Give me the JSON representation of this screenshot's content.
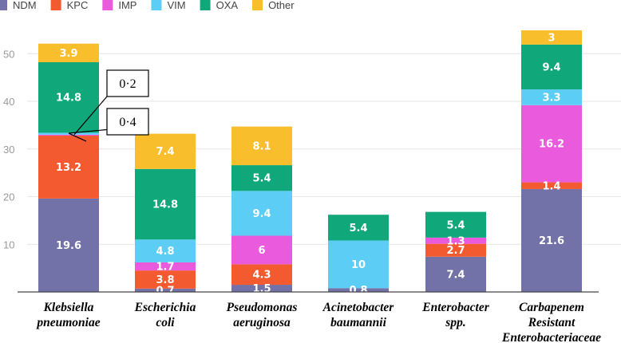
{
  "chart_data": {
    "type": "bar",
    "stacked": true,
    "title": "",
    "xlabel": "",
    "ylabel": "",
    "ylim": [
      0,
      55
    ],
    "yticks": [
      10,
      20,
      30,
      40,
      50
    ],
    "grid": true,
    "legend_position": "top-left",
    "categories": [
      [
        "Klebsiella",
        "pneumoniae"
      ],
      [
        "Escherichia",
        "coli"
      ],
      [
        "Pseudomonas",
        "aeruginosa"
      ],
      [
        "Acinetobacter",
        "baumannii"
      ],
      [
        "Enterobacter",
        "spp."
      ],
      [
        "Carbapenem",
        "Resistant",
        "Enterobacteriaceae"
      ]
    ],
    "series": [
      {
        "name": "NDM",
        "color": "#7272a8",
        "values": [
          19.6,
          0.7,
          1.5,
          0.8,
          7.4,
          21.6
        ],
        "labels": [
          "19.6",
          "0.7",
          "1.5",
          "0.8",
          "7.4",
          "21.6"
        ]
      },
      {
        "name": "KPC",
        "color": "#f45a2f",
        "values": [
          13.2,
          3.8,
          4.3,
          0,
          2.7,
          1.4
        ],
        "labels": [
          "13.2",
          "3.8",
          "4.3",
          "",
          "2.7",
          "1.4"
        ]
      },
      {
        "name": "IMP",
        "color": "#e95bdc",
        "values": [
          0.2,
          1.7,
          6,
          0,
          1.3,
          16.2
        ],
        "labels": [
          "",
          "1.7",
          "6",
          "",
          "1.3",
          "16.2"
        ]
      },
      {
        "name": "VIM",
        "color": "#5ccdf5",
        "values": [
          0.4,
          4.8,
          9.4,
          10,
          0,
          3.3
        ],
        "labels": [
          "",
          "4.8",
          "9.4",
          "10",
          "",
          "3.3"
        ]
      },
      {
        "name": "OXA",
        "color": "#10a87a",
        "values": [
          14.8,
          14.8,
          5.4,
          5.4,
          5.4,
          9.4
        ],
        "labels": [
          "14.8",
          "14.8",
          "5.4",
          "5.4",
          "5.4",
          "9.4"
        ]
      },
      {
        "name": "Other",
        "color": "#f9be2c",
        "values": [
          3.9,
          7.4,
          8.1,
          0,
          0,
          3
        ],
        "labels": [
          "3.9",
          "7.4",
          "8.1",
          "",
          "",
          "3"
        ]
      }
    ],
    "annotations": [
      {
        "text": "0·2",
        "category": "Klebsiella pneumoniae",
        "series": "IMP"
      },
      {
        "text": "0·4",
        "category": "Klebsiella pneumoniae",
        "series": "VIM"
      }
    ]
  }
}
